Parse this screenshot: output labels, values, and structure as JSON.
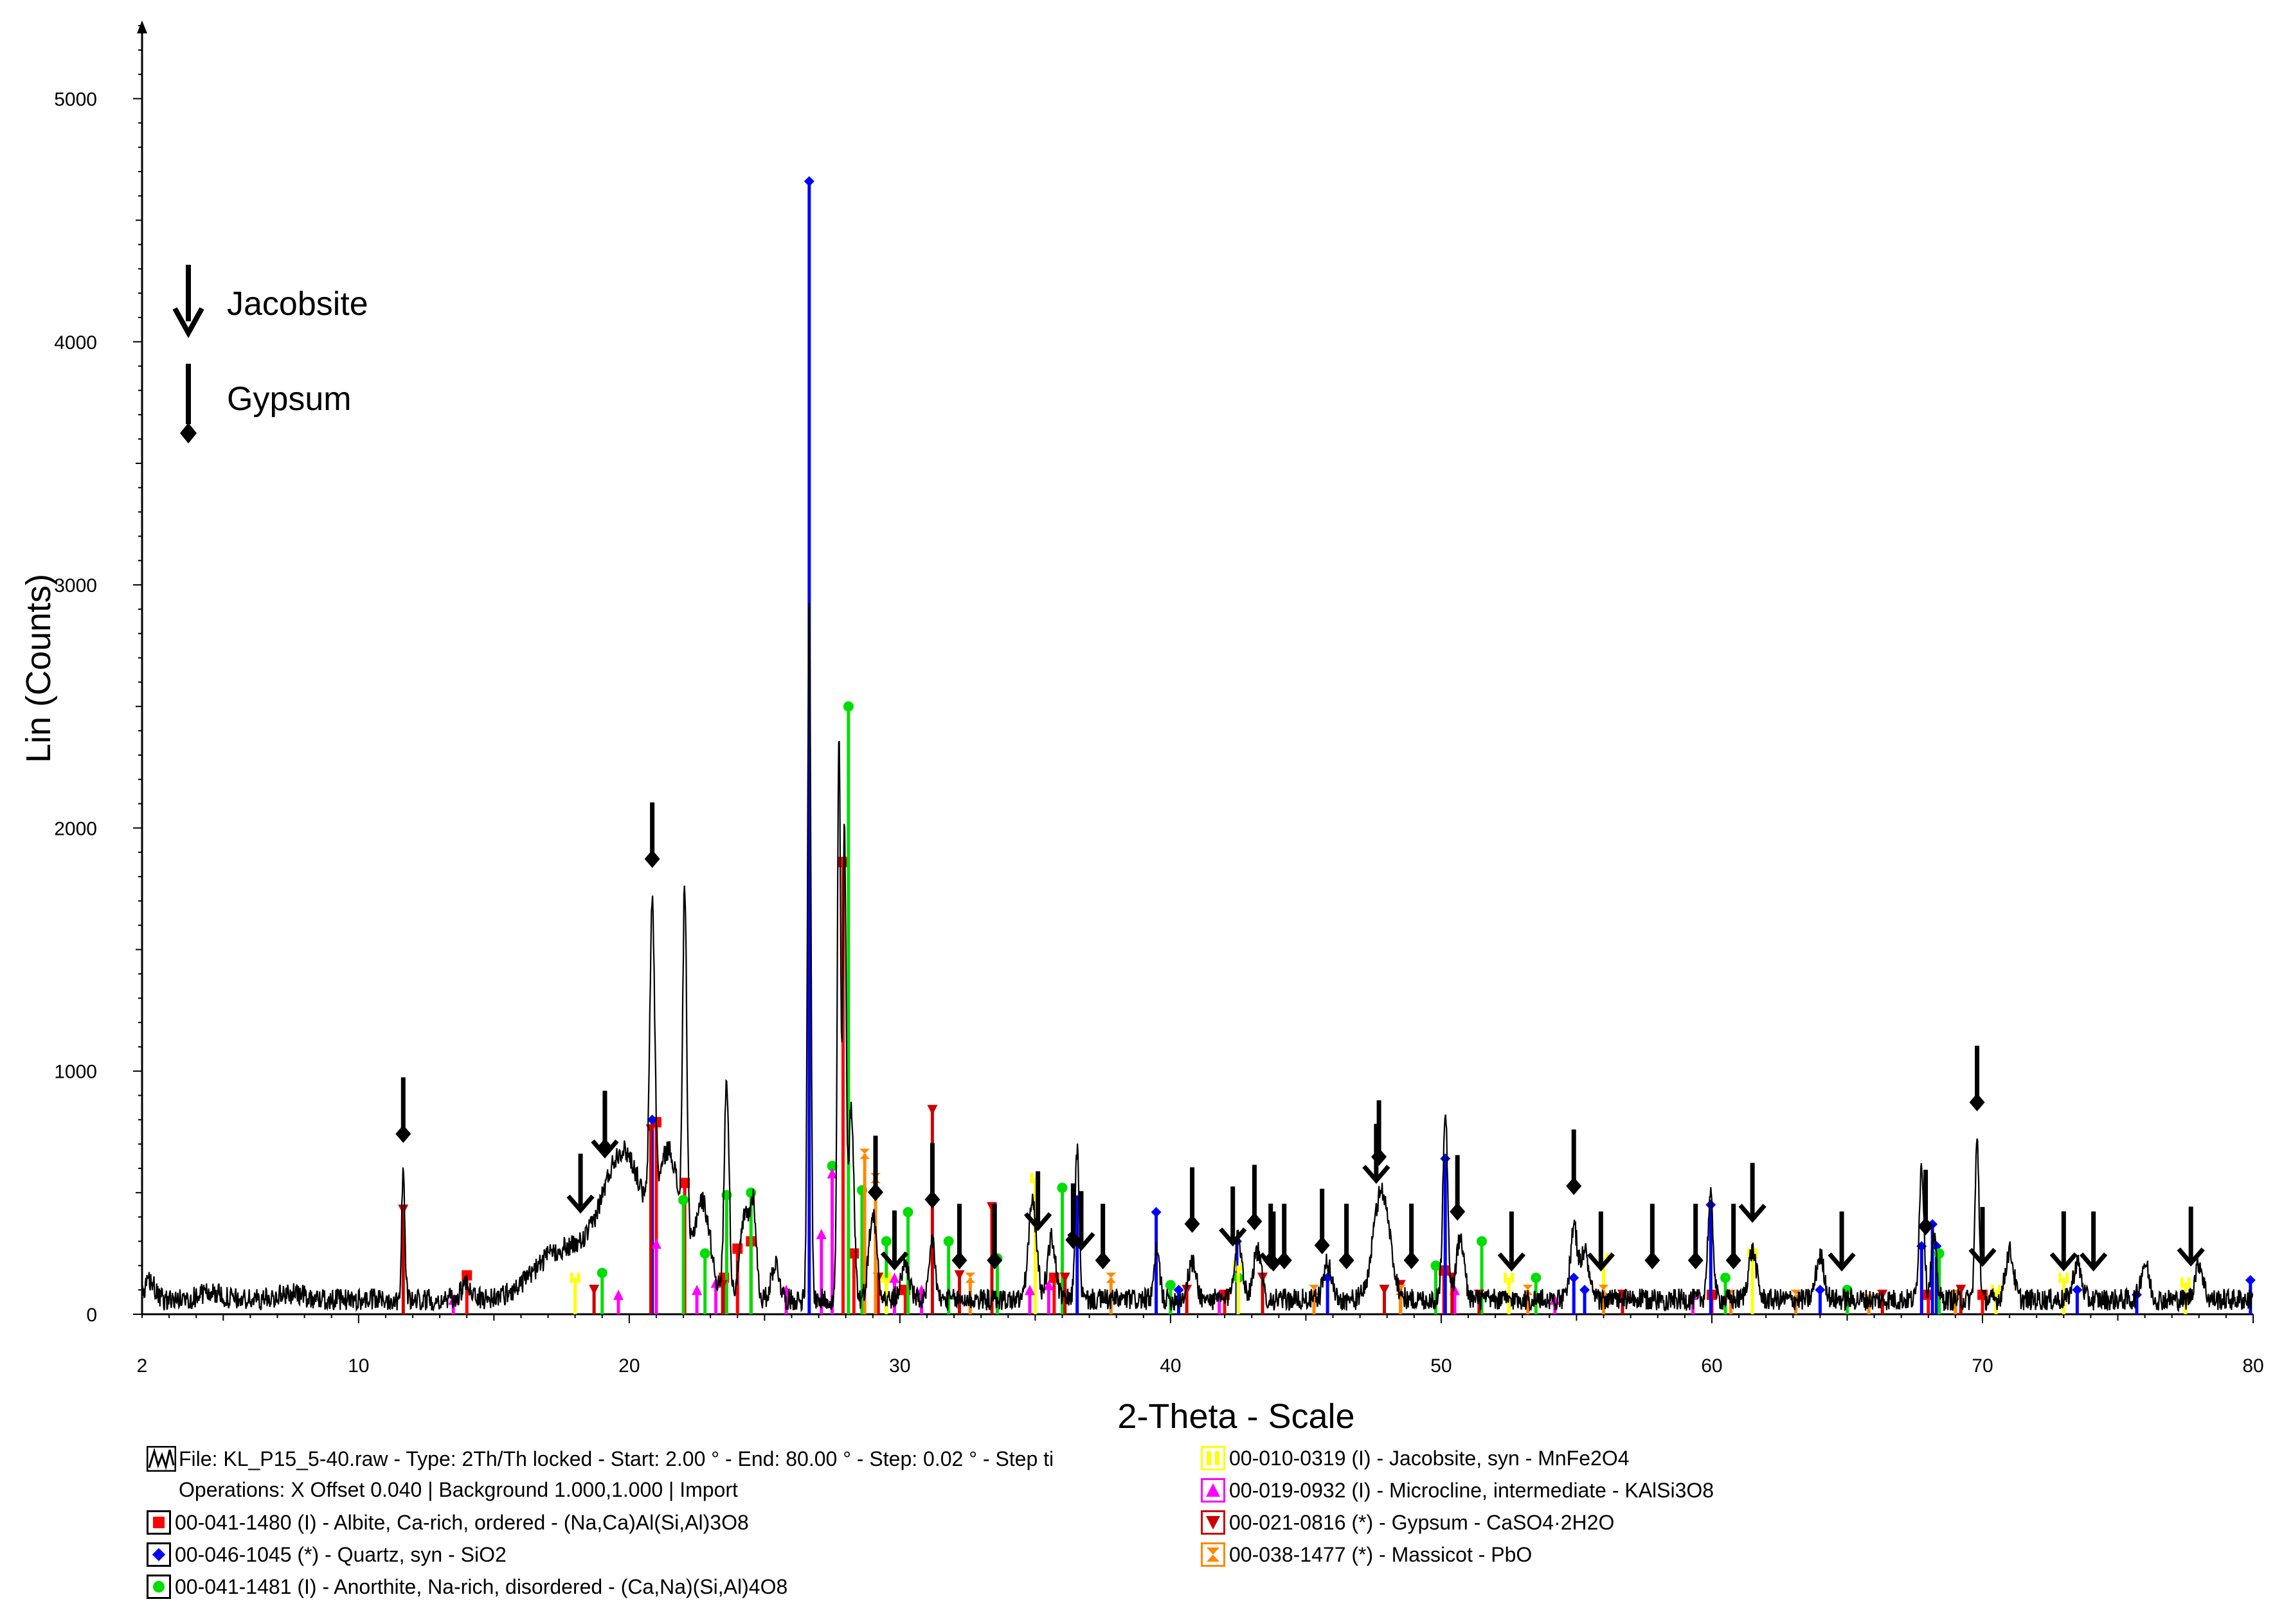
{
  "chart_data": {
    "type": "line",
    "xlabel": "2-Theta - Scale",
    "ylabel": "Lin (Counts)",
    "xlim": [
      2,
      80
    ],
    "ylim": [
      0,
      5300
    ],
    "x_ticks": [
      2,
      10,
      20,
      30,
      40,
      50,
      60,
      70,
      80
    ],
    "y_ticks": [
      0,
      1000,
      2000,
      3000,
      4000,
      5000
    ],
    "grid": false,
    "pattern": {
      "name": "KL_P15_5-40.raw",
      "color": "#000000",
      "background": 60,
      "peaks": [
        [
          2.3,
          80,
          0.3
        ],
        [
          4.5,
          30,
          0.8
        ],
        [
          7.5,
          25,
          1.0
        ],
        [
          11.65,
          520,
          0.12
        ],
        [
          14.0,
          60,
          0.4
        ],
        [
          17.5,
          200,
          2.0
        ],
        [
          19.8,
          600,
          1.6
        ],
        [
          20.85,
          1250,
          0.18
        ],
        [
          21.5,
          550,
          0.8
        ],
        [
          22.05,
          1450,
          0.15
        ],
        [
          22.7,
          400,
          0.6
        ],
        [
          23.6,
          900,
          0.18
        ],
        [
          24.3,
          350,
          0.4
        ],
        [
          24.6,
          300,
          0.2
        ],
        [
          25.4,
          150,
          0.3
        ],
        [
          26.65,
          2900,
          0.12
        ],
        [
          27.75,
          2300,
          0.12
        ],
        [
          27.95,
          1900,
          0.12
        ],
        [
          28.2,
          800,
          0.2
        ],
        [
          29.0,
          350,
          0.3
        ],
        [
          30.2,
          150,
          0.3
        ],
        [
          31.2,
          250,
          0.2
        ],
        [
          34.9,
          400,
          0.3
        ],
        [
          35.6,
          250,
          0.3
        ],
        [
          36.55,
          620,
          0.15
        ],
        [
          39.5,
          200,
          0.2
        ],
        [
          40.8,
          150,
          0.3
        ],
        [
          42.5,
          250,
          0.3
        ],
        [
          43.2,
          200,
          0.3
        ],
        [
          45.8,
          150,
          0.3
        ],
        [
          47.8,
          450,
          0.6
        ],
        [
          50.15,
          780,
          0.18
        ],
        [
          50.7,
          250,
          0.3
        ],
        [
          54.9,
          300,
          0.25
        ],
        [
          55.3,
          200,
          0.3
        ],
        [
          59.95,
          420,
          0.2
        ],
        [
          61.5,
          200,
          0.3
        ],
        [
          64.0,
          180,
          0.3
        ],
        [
          67.75,
          550,
          0.18
        ],
        [
          68.2,
          250,
          0.2
        ],
        [
          69.8,
          650,
          0.15
        ],
        [
          71.0,
          200,
          0.3
        ],
        [
          73.5,
          150,
          0.3
        ],
        [
          76.0,
          150,
          0.3
        ],
        [
          78.0,
          150,
          0.3
        ]
      ]
    },
    "reference_phases": [
      {
        "name": "Albite",
        "color": "#ff0000",
        "marker": "square",
        "sticks": [
          [
            14.0,
            160
          ],
          [
            21.0,
            790
          ],
          [
            22.05,
            540
          ],
          [
            23.5,
            150
          ],
          [
            24.0,
            270
          ],
          [
            24.5,
            300
          ],
          [
            27.9,
            1860
          ],
          [
            28.3,
            250
          ],
          [
            30.2,
            100
          ],
          [
            35.7,
            150
          ],
          [
            42.0,
            80
          ],
          [
            50.1,
            180
          ],
          [
            60.0,
            80
          ],
          [
            68.0,
            80
          ],
          [
            70.0,
            80
          ]
        ]
      },
      {
        "name": "Quartz",
        "color": "#0000ff",
        "marker": "diamond",
        "sticks": [
          [
            20.85,
            800
          ],
          [
            26.65,
            4660
          ],
          [
            36.55,
            470
          ],
          [
            39.47,
            420
          ],
          [
            40.3,
            100
          ],
          [
            42.45,
            300
          ],
          [
            45.8,
            150
          ],
          [
            50.15,
            640
          ],
          [
            54.9,
            150
          ],
          [
            55.3,
            100
          ],
          [
            59.96,
            450
          ],
          [
            64.0,
            100
          ],
          [
            67.75,
            280
          ],
          [
            68.15,
            370
          ],
          [
            68.3,
            280
          ],
          [
            73.5,
            100
          ],
          [
            75.7,
            80
          ],
          [
            79.9,
            140
          ]
        ]
      },
      {
        "name": "Anorthite",
        "color": "#00dd00",
        "marker": "circle",
        "sticks": [
          [
            19.0,
            170
          ],
          [
            22.0,
            470
          ],
          [
            22.8,
            250
          ],
          [
            23.6,
            490
          ],
          [
            24.5,
            500
          ],
          [
            27.5,
            610
          ],
          [
            28.1,
            2500
          ],
          [
            28.6,
            510
          ],
          [
            29.5,
            300
          ],
          [
            30.3,
            420
          ],
          [
            31.8,
            300
          ],
          [
            33.6,
            230
          ],
          [
            36.0,
            520
          ],
          [
            40.0,
            120
          ],
          [
            42.5,
            150
          ],
          [
            49.8,
            200
          ],
          [
            51.5,
            300
          ],
          [
            53.5,
            150
          ],
          [
            60.5,
            150
          ],
          [
            65.0,
            100
          ],
          [
            68.4,
            250
          ]
        ]
      },
      {
        "name": "Jacobsite",
        "color": "#ffff00",
        "marker": "bars",
        "sticks": [
          [
            18.0,
            150
          ],
          [
            29.5,
            150
          ],
          [
            35.0,
            560
          ],
          [
            42.5,
            200
          ],
          [
            52.5,
            150
          ],
          [
            56.0,
            230
          ],
          [
            61.5,
            250
          ],
          [
            70.5,
            100
          ],
          [
            73.0,
            150
          ],
          [
            77.5,
            130
          ]
        ]
      },
      {
        "name": "Microcline",
        "color": "#ff00ff",
        "marker": "triangle",
        "sticks": [
          [
            13.5,
            60
          ],
          [
            19.6,
            80
          ],
          [
            21.0,
            290
          ],
          [
            22.5,
            100
          ],
          [
            23.2,
            130
          ],
          [
            25.8,
            100
          ],
          [
            27.1,
            330
          ],
          [
            27.5,
            580
          ],
          [
            29.8,
            150
          ],
          [
            30.8,
            100
          ],
          [
            34.8,
            100
          ],
          [
            35.5,
            120
          ],
          [
            41.8,
            80
          ],
          [
            50.5,
            100
          ],
          [
            54.2,
            60
          ],
          [
            59.3,
            80
          ]
        ]
      },
      {
        "name": "Gypsum",
        "color": "#cc0000",
        "marker": "triangle-down",
        "sticks": [
          [
            11.65,
            430
          ],
          [
            18.7,
            100
          ],
          [
            20.8,
            760
          ],
          [
            23.45,
            120
          ],
          [
            29.2,
            150
          ],
          [
            31.2,
            840
          ],
          [
            32.2,
            160
          ],
          [
            33.4,
            440
          ],
          [
            36.1,
            150
          ],
          [
            40.6,
            100
          ],
          [
            43.4,
            150
          ],
          [
            47.9,
            100
          ],
          [
            48.5,
            120
          ],
          [
            50.4,
            150
          ],
          [
            51.4,
            80
          ],
          [
            56.7,
            80
          ],
          [
            66.3,
            80
          ],
          [
            69.2,
            100
          ]
        ]
      },
      {
        "name": "Massicot",
        "color": "#ff8800",
        "marker": "hourglass",
        "sticks": [
          [
            28.7,
            660
          ],
          [
            29.1,
            560
          ],
          [
            32.6,
            150
          ],
          [
            37.8,
            150
          ],
          [
            45.3,
            100
          ],
          [
            48.5,
            100
          ],
          [
            53.2,
            100
          ],
          [
            56.0,
            100
          ],
          [
            60.7,
            80
          ],
          [
            63.1,
            80
          ],
          [
            65.8,
            60
          ],
          [
            69.0,
            80
          ]
        ]
      }
    ],
    "jacobsite_markers": [
      18.2,
      19.1,
      29.8,
      35.1,
      36.7,
      42.3,
      43.8,
      47.6,
      52.6,
      55.9,
      61.5,
      64.8,
      70.0,
      73.0,
      74.1,
      77.7
    ],
    "gypsum_markers": [
      11.65,
      19.1,
      20.85,
      29.1,
      31.2,
      32.2,
      33.5,
      36.4,
      37.5,
      40.8,
      43.1,
      43.7,
      44.2,
      45.6,
      46.5,
      47.7,
      48.9,
      50.6,
      54.9,
      57.8,
      59.4,
      60.8,
      67.9,
      69.8
    ]
  },
  "key": {
    "jacobsite_label": "Jacobsite",
    "gypsum_label": "Gypsum"
  },
  "legend": {
    "pattern_line1": "File: KL_P15_5-40.raw - Type: 2Th/Th locked - Start: 2.00 ° - End: 80.00 ° - Step: 0.02 ° - Step ti",
    "pattern_line2": "Operations: X Offset 0.040 | Background 1.000,1.000 | Import",
    "albite": "00-041-1480 (I) - Albite, Ca-rich, ordered - (Na,Ca)Al(Si,Al)3O8",
    "quartz": "00-046-1045 (*) - Quartz, syn - SiO2",
    "anorthite": "00-041-1481 (I) - Anorthite, Na-rich, disordered - (Ca,Na)(Si,Al)4O8",
    "jacobsite": "00-010-0319 (I) - Jacobsite, syn - MnFe2O4",
    "microcline": "00-019-0932 (I) - Microcline, intermediate - KAlSi3O8",
    "gypsum": "00-021-0816 (*) - Gypsum - CaSO4·2H2O",
    "massicot": "00-038-1477 (*) - Massicot - PbO"
  }
}
